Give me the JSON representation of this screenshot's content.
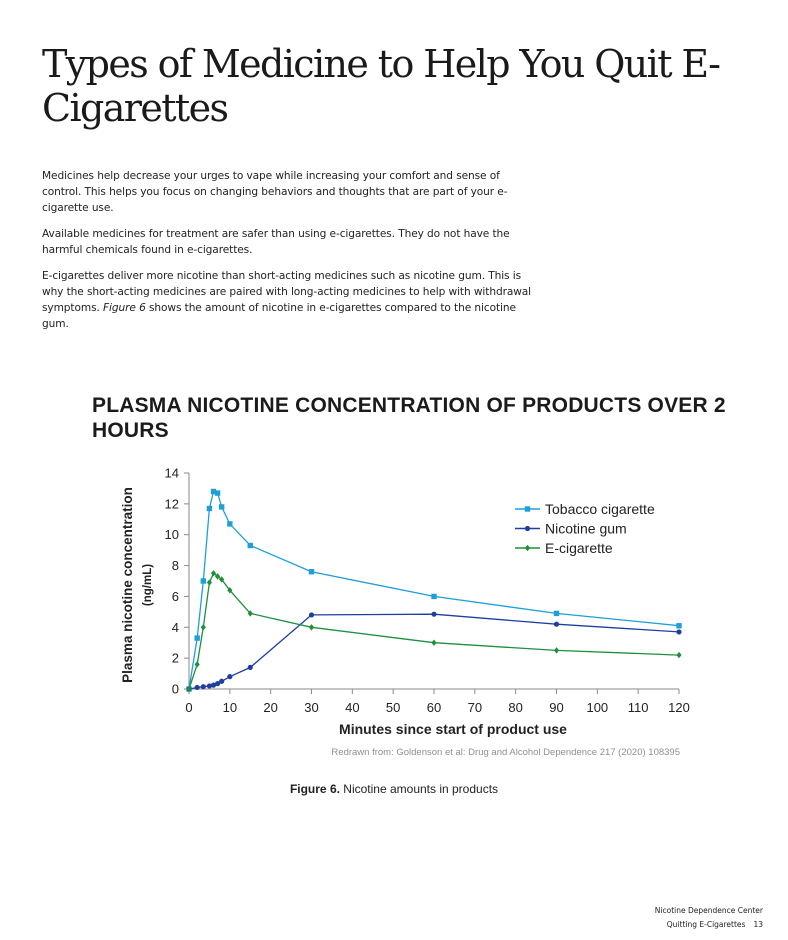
{
  "page": {
    "title": "Types of Medicine to Help You Quit E-Cigarettes",
    "paragraphs": {
      "p1": "Medicines help decrease your urges to vape while increasing your comfort and sense of control. This helps you focus on changing behaviors and thoughts that are part of your e-cigarette use.",
      "p2": "Available medicines for treatment are safer than using e-cigarettes. They do not have the harmful chemicals found in e-cigarettes.",
      "p3_before": "E-cigarettes deliver more nicotine than short-acting medicines such as nicotine gum. This is why the short-acting medicines are paired with long-acting medicines to help with withdrawal symptoms. ",
      "p3_italic": "Figure 6",
      "p3_after": " shows the amount of nicotine in e-cigarettes compared to the nicotine gum."
    },
    "figure_caption_bold": "Figure 6.",
    "figure_caption_text": " Nicotine amounts in products",
    "footer_line1": "Nicotine Dependence Center",
    "footer_line2": "Quitting E-Cigarettes",
    "page_number": "13"
  },
  "chart_data": {
    "type": "line",
    "title": "PLASMA NICOTINE CONCENTRATION OF PRODUCTS OVER 2 HOURS",
    "xlabel": "Minutes since start of product use",
    "ylabel": "Plasma nicotine concentration",
    "ylabel_unit": "(ng/mL)",
    "xlim": [
      0,
      120
    ],
    "ylim": [
      0,
      14
    ],
    "xticks": [
      0,
      10,
      20,
      30,
      40,
      50,
      60,
      70,
      80,
      90,
      100,
      110,
      120
    ],
    "yticks": [
      0,
      2,
      4,
      6,
      8,
      10,
      12,
      14
    ],
    "grid": false,
    "legend_position": "top-right",
    "source_note": "Redrawn from: Goldenson et al: Drug and Alcohol Dependence 217 (2020) 108395",
    "series": [
      {
        "name": "Tobacco cigarette",
        "color": "#1e9fd8",
        "marker": "square",
        "x": [
          0,
          2,
          3.5,
          5,
          6,
          7,
          8,
          10,
          15,
          30,
          60,
          90,
          120
        ],
        "y": [
          0,
          3.3,
          7.0,
          11.7,
          12.8,
          12.7,
          11.8,
          10.7,
          9.3,
          7.6,
          6.0,
          4.9,
          4.1
        ]
      },
      {
        "name": "Nicotine gum",
        "color": "#1f3f9e",
        "marker": "circle",
        "x": [
          0,
          2,
          3.5,
          5,
          6,
          7,
          8,
          10,
          15,
          30,
          60,
          90,
          120
        ],
        "y": [
          0,
          0.1,
          0.15,
          0.2,
          0.25,
          0.35,
          0.5,
          0.8,
          1.4,
          4.8,
          4.85,
          4.2,
          3.7
        ]
      },
      {
        "name": "E-cigarette",
        "color": "#1f8f3c",
        "marker": "diamond",
        "x": [
          0,
          2,
          3.5,
          5,
          6,
          7,
          8,
          10,
          15,
          30,
          60,
          90,
          120
        ],
        "y": [
          0,
          1.6,
          4.0,
          6.9,
          7.5,
          7.3,
          7.1,
          6.4,
          4.9,
          4.0,
          3.0,
          2.5,
          2.2
        ]
      }
    ]
  }
}
